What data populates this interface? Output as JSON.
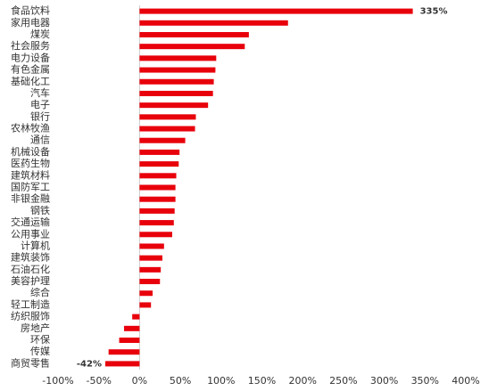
{
  "chart_data": {
    "type": "bar",
    "orientation": "horizontal",
    "categories": [
      "食品饮料",
      "家用电器",
      "煤炭",
      "社会服务",
      "电力设备",
      "有色金属",
      "基础化工",
      "汽车",
      "电子",
      "银行",
      "农林牧渔",
      "通信",
      "机械设备",
      "医药生物",
      "建筑材料",
      "国防军工",
      "非银金融",
      "钢铁",
      "交通运输",
      "公用事业",
      "计算机",
      "建筑装饰",
      "石油石化",
      "美容护理",
      "综合",
      "轻工制造",
      "纺织服饰",
      "房地产",
      "环保",
      "传媒",
      "商贸零售"
    ],
    "values": [
      335,
      182,
      134,
      129,
      94,
      93,
      91,
      90,
      84,
      69,
      68,
      56,
      49,
      48,
      45,
      44,
      44,
      43,
      42,
      40,
      30,
      28,
      26,
      25,
      16,
      14,
      -9,
      -19,
      -25,
      -38,
      -42
    ],
    "value_labels": [
      "335%",
      null,
      null,
      null,
      null,
      null,
      null,
      null,
      null,
      null,
      null,
      null,
      null,
      null,
      null,
      null,
      null,
      null,
      null,
      null,
      null,
      null,
      null,
      null,
      null,
      null,
      null,
      null,
      null,
      null,
      "-42%"
    ],
    "color": "#e8000b",
    "xlim": [
      -100,
      400
    ],
    "xticks": [
      {
        "value": -100,
        "label": "-100%"
      },
      {
        "value": -50,
        "label": "-50%"
      },
      {
        "value": 0,
        "label": "0%"
      },
      {
        "value": 50,
        "label": "50%"
      },
      {
        "value": 100,
        "label": "100%"
      },
      {
        "value": 150,
        "label": "150%"
      },
      {
        "value": 200,
        "label": "200%"
      },
      {
        "value": 250,
        "label": "250%"
      },
      {
        "value": 300,
        "label": "300%"
      },
      {
        "value": 350,
        "label": "350%"
      },
      {
        "value": 400,
        "label": "400%"
      }
    ]
  }
}
